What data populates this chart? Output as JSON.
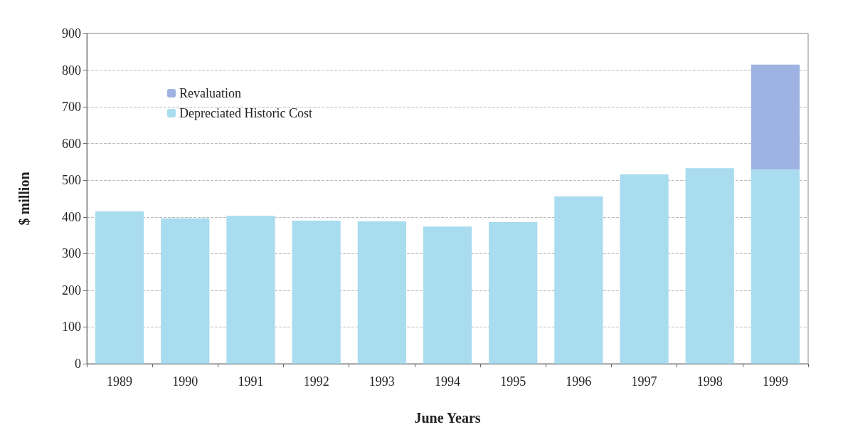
{
  "chart_data": {
    "type": "bar",
    "stacked": true,
    "xlabel": "June Years",
    "ylabel": "$ million",
    "categories": [
      "1989",
      "1990",
      "1991",
      "1992",
      "1993",
      "1994",
      "1995",
      "1996",
      "1997",
      "1998",
      "1999"
    ],
    "series": [
      {
        "name": "Depreciated Historic Cost",
        "color": "#a9dcef",
        "values": [
          415,
          396,
          403,
          390,
          388,
          374,
          386,
          456,
          516,
          533,
          529
        ]
      },
      {
        "name": "Revaluation",
        "color": "#9fb3e2",
        "values": [
          0,
          0,
          0,
          0,
          0,
          0,
          0,
          0,
          0,
          0,
          286
        ]
      }
    ],
    "ylim": [
      0,
      900
    ],
    "yticks": [
      0,
      100,
      200,
      300,
      400,
      500,
      600,
      700,
      800,
      900
    ],
    "grid": "y",
    "legend": "top left"
  }
}
